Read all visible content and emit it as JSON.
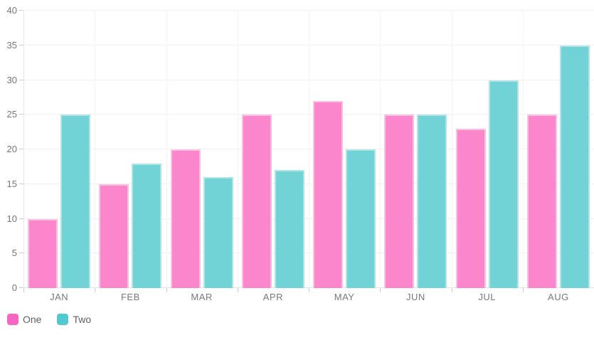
{
  "chart_data": {
    "type": "bar",
    "title": "",
    "xlabel": "",
    "ylabel": "",
    "categories": [
      "JAN",
      "FEB",
      "MAR",
      "APR",
      "MAY",
      "JUN",
      "JUL",
      "AUG"
    ],
    "series": [
      {
        "name": "One",
        "legend_color": "#f767c1",
        "bar_fill": "#fb86cb",
        "bar_border": "#fcc0e3",
        "values": [
          10,
          15,
          20,
          25,
          27,
          25,
          23,
          25
        ]
      },
      {
        "name": "Two",
        "legend_color": "#50c9d0",
        "bar_fill": "#72d3d6",
        "bar_border": "#b0e5e7",
        "values": [
          25,
          18,
          16,
          17,
          20,
          25,
          30,
          35
        ]
      }
    ],
    "ylim": [
      0,
      40
    ],
    "ytick_step": 5,
    "ytick_labels": [
      "0",
      "5",
      "10",
      "15",
      "20",
      "25",
      "30",
      "35",
      "40"
    ],
    "grid": true,
    "legend_position": "bottom-left"
  },
  "style": {
    "background": "#ffffff",
    "grid_color": "#f1f1f1",
    "vgrid_color": "#f4f4f4",
    "axis_line_color": "#e8e8e8",
    "baseline_color": "#e0e0e0",
    "tick_color": "#cccccc",
    "axis_label_color": "#787878",
    "legend_label_color": "#5f5f5f"
  }
}
